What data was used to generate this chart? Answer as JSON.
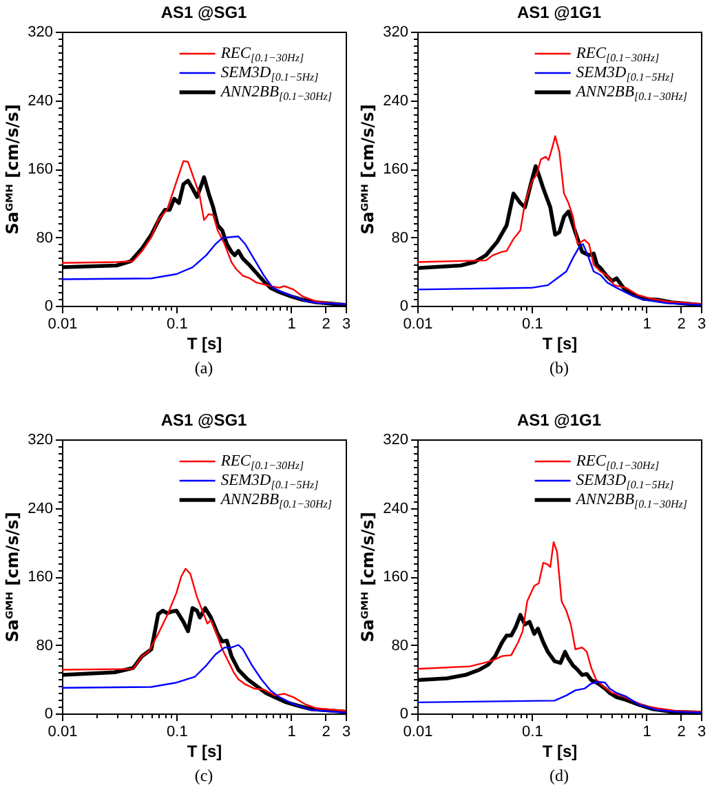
{
  "chart_data": [
    {
      "type": "line",
      "title": "AS1 @SG1",
      "xlabel": "T [s]",
      "ylabel": "Saᴳᴹᴴ [cm/s/s]",
      "log": "x",
      "legend": "top right",
      "annotations": [
        "(a)"
      ],
      "xlim": [
        0.01,
        3
      ],
      "xticks": [
        0.01,
        {
          "value": 0.02,
          "label": null
        },
        {
          "value": 0.03,
          "label": null
        },
        {
          "value": 0.04,
          "label": null
        },
        {
          "value": 0.05,
          "label": null
        },
        {
          "value": 0.06,
          "label": null
        },
        {
          "value": 0.07,
          "label": null
        },
        {
          "value": 0.08,
          "label": null
        },
        {
          "value": 0.09,
          "label": null
        },
        0.1,
        {
          "value": 0.2,
          "label": null
        },
        {
          "value": 0.3,
          "label": null
        },
        {
          "value": 0.4,
          "label": null
        },
        {
          "value": 0.5,
          "label": null
        },
        {
          "value": 0.6,
          "label": null
        },
        {
          "value": 0.7,
          "label": null
        },
        {
          "value": 0.8,
          "label": null
        },
        {
          "value": 0.9,
          "label": null
        },
        1,
        2,
        3
      ],
      "ylim": [
        0,
        320
      ],
      "yticks": [
        0,
        {
          "value": 8,
          "label": null
        },
        {
          "value": 16,
          "label": null
        },
        {
          "value": 24,
          "label": null
        },
        {
          "value": 32,
          "label": null
        },
        {
          "value": 40,
          "label": null
        },
        {
          "value": 48,
          "label": null
        },
        {
          "value": 56,
          "label": null
        },
        {
          "value": 64,
          "label": null
        },
        {
          "value": 72,
          "label": null
        },
        80,
        {
          "value": 88,
          "label": null
        },
        {
          "value": 96,
          "label": null
        },
        {
          "value": 104,
          "label": null
        },
        {
          "value": 112,
          "label": null
        },
        {
          "value": 120,
          "label": null
        },
        {
          "value": 128,
          "label": null
        },
        {
          "value": 136,
          "label": null
        },
        {
          "value": 144,
          "label": null
        },
        {
          "value": 152,
          "label": null
        },
        160,
        {
          "value": 168,
          "label": null
        },
        {
          "value": 176,
          "label": null
        },
        {
          "value": 184,
          "label": null
        },
        {
          "value": 192,
          "label": null
        },
        {
          "value": 200,
          "label": null
        },
        {
          "value": 208,
          "label": null
        },
        {
          "value": 216,
          "label": null
        },
        {
          "value": 224,
          "label": null
        },
        {
          "value": 232,
          "label": null
        },
        240,
        {
          "value": 248,
          "label": null
        },
        {
          "value": 256,
          "label": null
        },
        {
          "value": 264,
          "label": null
        },
        {
          "value": 272,
          "label": null
        },
        {
          "value": 280,
          "label": null
        },
        {
          "value": 288,
          "label": null
        },
        {
          "value": 296,
          "label": null
        },
        {
          "value": 304,
          "label": null
        },
        {
          "value": 312,
          "label": null
        },
        320
      ],
      "series": [
        {
          "name": "REC$_{[0.1−30Hz]}$",
          "color": "#ff0000",
          "x": [
            0.01,
            0.03,
            0.0417,
            0.0501,
            0.0603,
            0.0692,
            0.0832,
            0.1,
            0.115,
            0.126,
            0.138,
            0.158,
            0.174,
            0.191,
            0.209,
            0.229,
            0.263,
            0.302,
            0.331,
            0.38,
            0.437,
            0.501,
            0.575,
            0.661,
            0.794,
            0.871,
            1.05,
            1.26,
            1.67,
            2.19,
            3
          ],
          "values": [
            50,
            51,
            52,
            64,
            80,
            100,
            113,
            145,
            169,
            168,
            153,
            131,
            100,
            107,
            106,
            88,
            72,
            51,
            43,
            35,
            32,
            27,
            25,
            23,
            21,
            23,
            19,
            11,
            5,
            3,
            2
          ]
        },
        {
          "name": "SEM3D$_{[0.1−5Hz]}$",
          "color": "#0000ff",
          "x": [
            0.01,
            0.0603,
            0.1,
            0.138,
            0.182,
            0.219,
            0.251,
            0.288,
            0.347,
            0.398,
            0.479,
            0.575,
            0.692,
            0.832,
            1.05,
            1.38,
            1.82,
            3
          ],
          "values": [
            31,
            32,
            37,
            45,
            59,
            72,
            79,
            80,
            81,
            72,
            54,
            36,
            21,
            16,
            11,
            5,
            3,
            2
          ]
        },
        {
          "name": "ANN2BB$_{[0.1−30Hz]}$",
          "color": "#000000",
          "x": [
            0.01,
            0.03,
            0.0398,
            0.0501,
            0.0603,
            0.0724,
            0.0794,
            0.0871,
            0.0955,
            0.105,
            0.115,
            0.126,
            0.138,
            0.151,
            0.166,
            0.174,
            0.191,
            0.209,
            0.229,
            0.251,
            0.275,
            0.302,
            0.322,
            0.347,
            0.38,
            0.437,
            0.501,
            0.575,
            0.661,
            0.794,
            1.0,
            1.26,
            1.67,
            3
          ],
          "values": [
            45,
            47,
            52,
            67,
            83,
            104,
            112,
            112,
            125,
            120,
            142,
            146,
            137,
            127,
            142,
            150,
            131,
            115,
            94,
            88,
            72,
            63,
            59,
            64,
            55,
            47,
            38,
            29,
            21,
            16,
            11,
            7,
            4,
            1
          ]
        }
      ]
    },
    {
      "type": "line",
      "title": "AS1 @1G1",
      "xlabel": "T [s]",
      "ylabel": "Saᴳᴹᴴ [cm/s/s]",
      "log": "x",
      "legend": "top right",
      "annotations": [
        "(b)"
      ],
      "xlim": [
        0.01,
        3
      ],
      "xticks": [
        0.01,
        {
          "value": 0.02,
          "label": null
        },
        {
          "value": 0.03,
          "label": null
        },
        {
          "value": 0.04,
          "label": null
        },
        {
          "value": 0.05,
          "label": null
        },
        {
          "value": 0.06,
          "label": null
        },
        {
          "value": 0.07,
          "label": null
        },
        {
          "value": 0.08,
          "label": null
        },
        {
          "value": 0.09,
          "label": null
        },
        0.1,
        {
          "value": 0.2,
          "label": null
        },
        {
          "value": 0.3,
          "label": null
        },
        {
          "value": 0.4,
          "label": null
        },
        {
          "value": 0.5,
          "label": null
        },
        {
          "value": 0.6,
          "label": null
        },
        {
          "value": 0.7,
          "label": null
        },
        {
          "value": 0.8,
          "label": null
        },
        {
          "value": 0.9,
          "label": null
        },
        1,
        2,
        3
      ],
      "ylim": [
        0,
        320
      ],
      "yticks": [
        0,
        {
          "value": 8,
          "label": null
        },
        {
          "value": 16,
          "label": null
        },
        {
          "value": 24,
          "label": null
        },
        {
          "value": 32,
          "label": null
        },
        {
          "value": 40,
          "label": null
        },
        {
          "value": 48,
          "label": null
        },
        {
          "value": 56,
          "label": null
        },
        {
          "value": 64,
          "label": null
        },
        {
          "value": 72,
          "label": null
        },
        80,
        {
          "value": 88,
          "label": null
        },
        {
          "value": 96,
          "label": null
        },
        {
          "value": 104,
          "label": null
        },
        {
          "value": 112,
          "label": null
        },
        {
          "value": 120,
          "label": null
        },
        {
          "value": 128,
          "label": null
        },
        {
          "value": 136,
          "label": null
        },
        {
          "value": 144,
          "label": null
        },
        {
          "value": 152,
          "label": null
        },
        160,
        {
          "value": 168,
          "label": null
        },
        {
          "value": 176,
          "label": null
        },
        {
          "value": 184,
          "label": null
        },
        {
          "value": 192,
          "label": null
        },
        {
          "value": 200,
          "label": null
        },
        {
          "value": 208,
          "label": null
        },
        {
          "value": 216,
          "label": null
        },
        {
          "value": 224,
          "label": null
        },
        {
          "value": 232,
          "label": null
        },
        240,
        {
          "value": 248,
          "label": null
        },
        {
          "value": 256,
          "label": null
        },
        {
          "value": 264,
          "label": null
        },
        {
          "value": 272,
          "label": null
        },
        {
          "value": 280,
          "label": null
        },
        {
          "value": 288,
          "label": null
        },
        {
          "value": 296,
          "label": null
        },
        {
          "value": 304,
          "label": null
        },
        {
          "value": 312,
          "label": null
        },
        320
      ],
      "series": [
        {
          "name": "REC$_{[0.1−30Hz]}$",
          "color": "#ff0000",
          "x": [
            0.01,
            0.0398,
            0.0457,
            0.055,
            0.0603,
            0.0692,
            0.0794,
            0.0871,
            0.1,
            0.11,
            0.12,
            0.132,
            0.14,
            0.151,
            0.16,
            0.174,
            0.191,
            0.209,
            0.229,
            0.251,
            0.288,
            0.316,
            0.347,
            0.398,
            0.457,
            0.525,
            0.661,
            0.832,
            1.05,
            1.51,
            3
          ],
          "values": [
            51,
            53,
            59,
            63,
            64,
            78,
            88,
            120,
            145,
            153,
            171,
            174,
            170,
            185,
            198,
            180,
            131,
            120,
            104,
            72,
            77,
            72,
            48,
            40,
            35,
            24,
            21,
            13,
            9,
            5,
            2
          ]
        },
        {
          "name": "SEM3D$_{[0.1−5Hz]}$",
          "color": "#0000ff",
          "x": [
            0.01,
            0.1,
            0.138,
            0.166,
            0.2,
            0.229,
            0.263,
            0.28,
            0.308,
            0.347,
            0.398,
            0.457,
            0.55,
            0.724,
            0.955,
            1.51,
            3
          ],
          "values": [
            19,
            21,
            24,
            32,
            40,
            56,
            70,
            72,
            59,
            40,
            36,
            27,
            21,
            13,
            7,
            3,
            1
          ]
        },
        {
          "name": "ANN2BB$_{[0.1−30Hz]}$",
          "color": "#000000",
          "x": [
            0.01,
            0.024,
            0.0316,
            0.0398,
            0.0501,
            0.0603,
            0.0692,
            0.0794,
            0.0871,
            0.098,
            0.108,
            0.115,
            0.126,
            0.145,
            0.16,
            0.174,
            0.191,
            0.209,
            0.229,
            0.251,
            0.275,
            0.316,
            0.347,
            0.37,
            0.398,
            0.45,
            0.501,
            0.55,
            0.631,
            0.759,
            0.955,
            1.26,
            1.67,
            3
          ],
          "values": [
            44,
            47,
            51,
            59,
            75,
            94,
            131,
            120,
            115,
            142,
            163,
            153,
            137,
            115,
            83,
            86,
            104,
            110,
            94,
            78,
            63,
            59,
            61,
            48,
            44,
            35,
            29,
            32,
            21,
            13,
            8,
            7,
            4,
            1
          ]
        }
      ]
    },
    {
      "type": "line",
      "title": "AS1 @SG1",
      "xlabel": "T [s]",
      "ylabel": "Saᴳᴹᴴ [cm/s/s]",
      "log": "x",
      "legend": "top right",
      "annotations": [
        "(c)"
      ],
      "xlim": [
        0.01,
        3
      ],
      "xticks": [
        0.01,
        {
          "value": 0.02,
          "label": null
        },
        {
          "value": 0.03,
          "label": null
        },
        {
          "value": 0.04,
          "label": null
        },
        {
          "value": 0.05,
          "label": null
        },
        {
          "value": 0.06,
          "label": null
        },
        {
          "value": 0.07,
          "label": null
        },
        {
          "value": 0.08,
          "label": null
        },
        {
          "value": 0.09,
          "label": null
        },
        0.1,
        {
          "value": 0.2,
          "label": null
        },
        {
          "value": 0.3,
          "label": null
        },
        {
          "value": 0.4,
          "label": null
        },
        {
          "value": 0.5,
          "label": null
        },
        {
          "value": 0.6,
          "label": null
        },
        {
          "value": 0.7,
          "label": null
        },
        {
          "value": 0.8,
          "label": null
        },
        {
          "value": 0.9,
          "label": null
        },
        1,
        2,
        3
      ],
      "ylim": [
        0,
        320
      ],
      "yticks": [
        0,
        {
          "value": 8,
          "label": null
        },
        {
          "value": 16,
          "label": null
        },
        {
          "value": 24,
          "label": null
        },
        {
          "value": 32,
          "label": null
        },
        {
          "value": 40,
          "label": null
        },
        {
          "value": 48,
          "label": null
        },
        {
          "value": 56,
          "label": null
        },
        {
          "value": 64,
          "label": null
        },
        {
          "value": 72,
          "label": null
        },
        80,
        {
          "value": 88,
          "label": null
        },
        {
          "value": 96,
          "label": null
        },
        {
          "value": 104,
          "label": null
        },
        {
          "value": 112,
          "label": null
        },
        {
          "value": 120,
          "label": null
        },
        {
          "value": 128,
          "label": null
        },
        {
          "value": 136,
          "label": null
        },
        {
          "value": 144,
          "label": null
        },
        {
          "value": 152,
          "label": null
        },
        160,
        {
          "value": 168,
          "label": null
        },
        {
          "value": 176,
          "label": null
        },
        {
          "value": 184,
          "label": null
        },
        {
          "value": 192,
          "label": null
        },
        {
          "value": 200,
          "label": null
        },
        {
          "value": 208,
          "label": null
        },
        {
          "value": 216,
          "label": null
        },
        {
          "value": 224,
          "label": null
        },
        {
          "value": 232,
          "label": null
        },
        240,
        {
          "value": 248,
          "label": null
        },
        {
          "value": 256,
          "label": null
        },
        {
          "value": 264,
          "label": null
        },
        {
          "value": 272,
          "label": null
        },
        {
          "value": 280,
          "label": null
        },
        {
          "value": 288,
          "label": null
        },
        {
          "value": 296,
          "label": null
        },
        {
          "value": 304,
          "label": null
        },
        {
          "value": 312,
          "label": null
        },
        320
      ],
      "series": [
        {
          "name": "REC$_{[0.1−30Hz]}$",
          "color": "#ff0000",
          "x": [
            0.01,
            0.0417,
            0.0501,
            0.0575,
            0.0692,
            0.0832,
            0.1,
            0.11,
            0.12,
            0.132,
            0.151,
            0.174,
            0.186,
            0.2,
            0.219,
            0.251,
            0.288,
            0.316,
            0.347,
            0.398,
            0.479,
            0.575,
            0.724,
            0.871,
            1.05,
            1.32,
            1.67,
            3
          ],
          "values": [
            51,
            52,
            67,
            73,
            93,
            115,
            141,
            160,
            169,
            163,
            136,
            115,
            105,
            109,
            96,
            75,
            59,
            48,
            40,
            34,
            29,
            28,
            21,
            23,
            19,
            11,
            6,
            3
          ]
        },
        {
          "name": "SEM3D$_{[0.1−5Hz]}$",
          "color": "#0000ff",
          "x": [
            0.01,
            0.0603,
            0.1,
            0.145,
            0.182,
            0.219,
            0.263,
            0.302,
            0.347,
            0.38,
            0.457,
            0.55,
            0.661,
            0.794,
            1.05,
            1.51,
            3
          ],
          "values": [
            30,
            31,
            36,
            43,
            56,
            69,
            77,
            77,
            80,
            75,
            56,
            40,
            27,
            19,
            11,
            4,
            1
          ]
        },
        {
          "name": "ANN2BB$_{[0.1−30Hz]}$",
          "color": "#000000",
          "x": [
            0.01,
            0.0288,
            0.0417,
            0.0501,
            0.0603,
            0.0631,
            0.0692,
            0.0759,
            0.0832,
            0.0912,
            0.1,
            0.115,
            0.126,
            0.138,
            0.151,
            0.16,
            0.178,
            0.2,
            0.229,
            0.251,
            0.275,
            0.302,
            0.347,
            0.417,
            0.501,
            0.603,
            0.724,
            0.912,
            1.15,
            1.51,
            3
          ],
          "values": [
            45,
            48,
            53,
            67,
            75,
            88,
            116,
            120,
            117,
            119,
            120,
            107,
            96,
            123,
            120,
            112,
            123,
            112,
            93,
            84,
            85,
            67,
            51,
            40,
            32,
            24,
            19,
            13,
            9,
            5,
            2
          ]
        }
      ]
    },
    {
      "type": "line",
      "title": "AS1 @1G1",
      "xlabel": "T [s]",
      "ylabel": "Saᴳᴹᴴ [cm/s/s]",
      "log": "x",
      "legend": "top right",
      "annotations": [
        "(d)"
      ],
      "xlim": [
        0.01,
        3
      ],
      "xticks": [
        0.01,
        {
          "value": 0.02,
          "label": null
        },
        {
          "value": 0.03,
          "label": null
        },
        {
          "value": 0.04,
          "label": null
        },
        {
          "value": 0.05,
          "label": null
        },
        {
          "value": 0.06,
          "label": null
        },
        {
          "value": 0.07,
          "label": null
        },
        {
          "value": 0.08,
          "label": null
        },
        {
          "value": 0.09,
          "label": null
        },
        0.1,
        {
          "value": 0.2,
          "label": null
        },
        {
          "value": 0.3,
          "label": null
        },
        {
          "value": 0.4,
          "label": null
        },
        {
          "value": 0.5,
          "label": null
        },
        {
          "value": 0.6,
          "label": null
        },
        {
          "value": 0.7,
          "label": null
        },
        {
          "value": 0.8,
          "label": null
        },
        {
          "value": 0.9,
          "label": null
        },
        1,
        2,
        3
      ],
      "ylim": [
        0,
        320
      ],
      "yticks": [
        0,
        {
          "value": 8,
          "label": null
        },
        {
          "value": 16,
          "label": null
        },
        {
          "value": 24,
          "label": null
        },
        {
          "value": 32,
          "label": null
        },
        {
          "value": 40,
          "label": null
        },
        {
          "value": 48,
          "label": null
        },
        {
          "value": 56,
          "label": null
        },
        {
          "value": 64,
          "label": null
        },
        {
          "value": 72,
          "label": null
        },
        80,
        {
          "value": 88,
          "label": null
        },
        {
          "value": 96,
          "label": null
        },
        {
          "value": 104,
          "label": null
        },
        {
          "value": 112,
          "label": null
        },
        {
          "value": 120,
          "label": null
        },
        {
          "value": 128,
          "label": null
        },
        {
          "value": 136,
          "label": null
        },
        {
          "value": 144,
          "label": null
        },
        {
          "value": 152,
          "label": null
        },
        160,
        {
          "value": 168,
          "label": null
        },
        {
          "value": 176,
          "label": null
        },
        {
          "value": 184,
          "label": null
        },
        {
          "value": 192,
          "label": null
        },
        {
          "value": 200,
          "label": null
        },
        {
          "value": 208,
          "label": null
        },
        {
          "value": 216,
          "label": null
        },
        {
          "value": 224,
          "label": null
        },
        {
          "value": 232,
          "label": null
        },
        240,
        {
          "value": 248,
          "label": null
        },
        {
          "value": 256,
          "label": null
        },
        {
          "value": 264,
          "label": null
        },
        {
          "value": 272,
          "label": null
        },
        {
          "value": 280,
          "label": null
        },
        {
          "value": 288,
          "label": null
        },
        {
          "value": 296,
          "label": null
        },
        {
          "value": 304,
          "label": null
        },
        {
          "value": 312,
          "label": null
        },
        320
      ],
      "series": [
        {
          "name": "REC$_{[0.1−30Hz]}$",
          "color": "#ff0000",
          "x": [
            0.01,
            0.0288,
            0.038,
            0.0457,
            0.055,
            0.0661,
            0.0759,
            0.0832,
            0.0912,
            0.105,
            0.115,
            0.126,
            0.138,
            0.145,
            0.155,
            0.166,
            0.182,
            0.2,
            0.219,
            0.24,
            0.275,
            0.302,
            0.331,
            0.363,
            0.417,
            0.501,
            0.603,
            0.724,
            0.955,
            1.26,
            1.82,
            3
          ],
          "values": [
            52,
            55,
            59,
            62,
            67,
            68,
            83,
            96,
            131,
            149,
            152,
            176,
            174,
            171,
            200,
            189,
            131,
            120,
            104,
            75,
            77,
            72,
            53,
            40,
            32,
            24,
            21,
            16,
            9,
            6,
            3,
            2
          ]
        },
        {
          "name": "SEM3D$_{[0.1−5Hz]}$",
          "color": "#0000ff",
          "x": [
            0.01,
            0.158,
            0.2,
            0.24,
            0.288,
            0.331,
            0.38,
            0.437,
            0.479,
            0.55,
            0.661,
            0.871,
            1.26,
            1.82,
            3
          ],
          "values": [
            13,
            15,
            21,
            27,
            29,
            35,
            37,
            36,
            29,
            24,
            20,
            10,
            4,
            2,
            1
          ]
        },
        {
          "name": "ANN2BB$_{[0.1−30Hz]}$",
          "color": "#000000",
          "x": [
            0.01,
            0.0182,
            0.0263,
            0.0347,
            0.0417,
            0.0479,
            0.055,
            0.0603,
            0.0661,
            0.0724,
            0.0794,
            0.0871,
            0.0955,
            0.105,
            0.113,
            0.126,
            0.138,
            0.158,
            0.178,
            0.195,
            0.209,
            0.229,
            0.251,
            0.275,
            0.302,
            0.331,
            0.38,
            0.437,
            0.479,
            0.55,
            0.661,
            0.871,
            1.15,
            1.67,
            3
          ],
          "values": [
            39,
            41,
            45,
            51,
            57,
            67,
            83,
            91,
            91,
            101,
            115,
            104,
            107,
            93,
            99,
            83,
            72,
            61,
            59,
            72,
            64,
            56,
            51,
            45,
            46,
            39,
            35,
            29,
            24,
            19,
            16,
            10,
            5,
            2,
            1
          ]
        }
      ]
    }
  ]
}
